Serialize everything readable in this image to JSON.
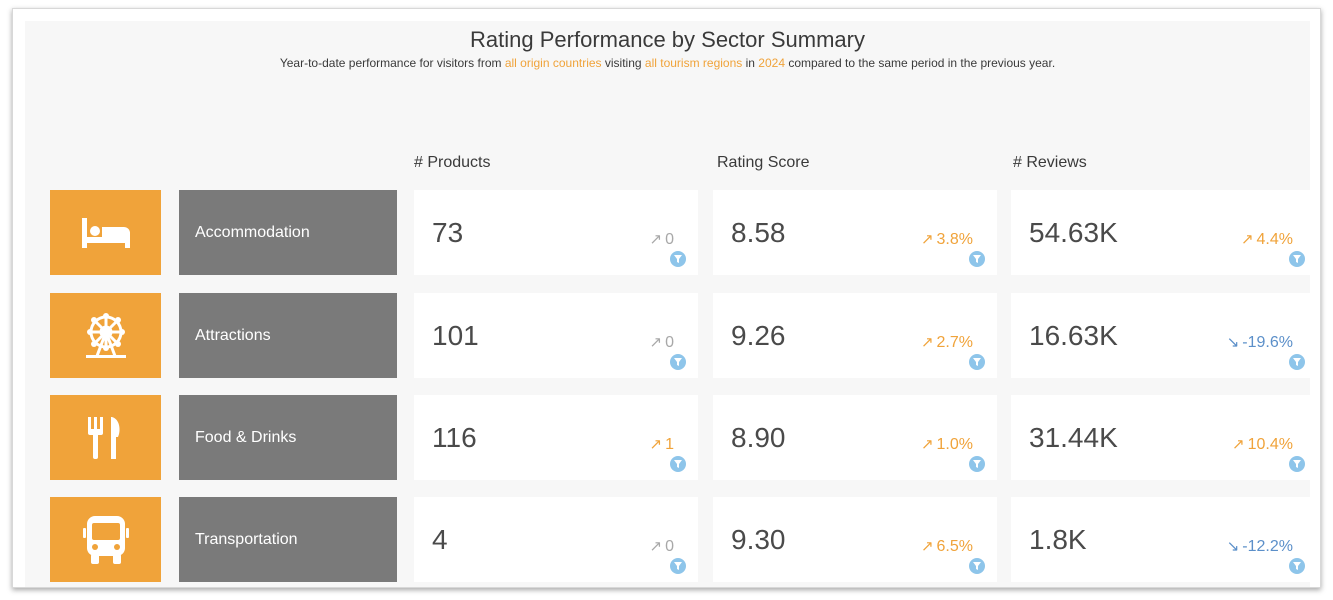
{
  "header": {
    "title": "Rating Performance by Sector Summary",
    "subtitle": {
      "p1": "Year-to-date performance for visitors from ",
      "origin": "all origin countries",
      "p2": " visiting ",
      "regions": "all tourism regions",
      "p3": " in ",
      "year": "2024",
      "p4": " compared to the same period in the previous year."
    }
  },
  "columns": {
    "products": "# Products",
    "rating": "Rating Score",
    "reviews": "# Reviews"
  },
  "colors": {
    "accent": "#f0a33a",
    "label_bg": "#7a7a7a",
    "negative": "#5b8fc9",
    "neutral": "#a8a8a8",
    "filter": "#8ec5ea"
  },
  "rows": [
    {
      "icon": "bed-icon",
      "label": "Accommodation",
      "products": {
        "value": "73",
        "delta": "0",
        "dir": "flat",
        "arrow": "↗"
      },
      "rating": {
        "value": "8.58",
        "delta": "3.8%",
        "dir": "up",
        "arrow": "↗"
      },
      "reviews": {
        "value": "54.63K",
        "delta": "4.4%",
        "dir": "up",
        "arrow": "↗"
      }
    },
    {
      "icon": "ferris-wheel-icon",
      "label": "Attractions",
      "products": {
        "value": "101",
        "delta": "0",
        "dir": "flat",
        "arrow": "↗"
      },
      "rating": {
        "value": "9.26",
        "delta": "2.7%",
        "dir": "up",
        "arrow": "↗"
      },
      "reviews": {
        "value": "16.63K",
        "delta": "-19.6%",
        "dir": "down",
        "arrow": "↘"
      }
    },
    {
      "icon": "fork-knife-icon",
      "label": "Food & Drinks",
      "products": {
        "value": "116",
        "delta": "1",
        "dir": "up",
        "arrow": "↗"
      },
      "rating": {
        "value": "8.90",
        "delta": "1.0%",
        "dir": "up",
        "arrow": "↗"
      },
      "reviews": {
        "value": "31.44K",
        "delta": "10.4%",
        "dir": "up",
        "arrow": "↗"
      }
    },
    {
      "icon": "bus-icon",
      "label": "Transportation",
      "products": {
        "value": "4",
        "delta": "0",
        "dir": "flat",
        "arrow": "↗"
      },
      "rating": {
        "value": "9.30",
        "delta": "6.5%",
        "dir": "up",
        "arrow": "↗"
      },
      "reviews": {
        "value": "1.8K",
        "delta": "-12.2%",
        "dir": "down",
        "arrow": "↘"
      }
    }
  ]
}
